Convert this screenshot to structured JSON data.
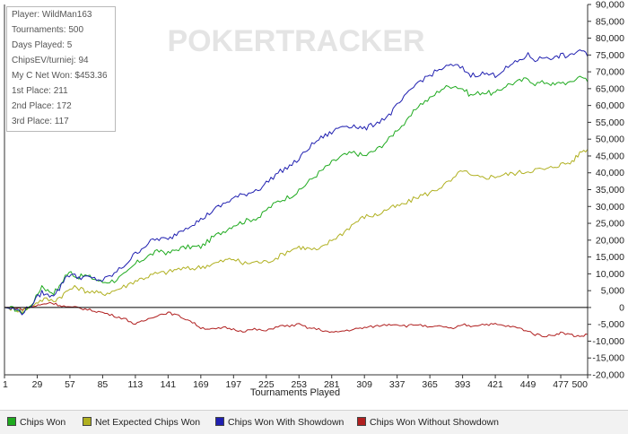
{
  "watermark": "POKERTRACKER",
  "stats": [
    "Player: WildMan163",
    "Tournaments: 500",
    "Days Played: 5",
    "ChipsEV/turniej: 94",
    "My C Net Won: $453.36",
    "1st Place: 211",
    "2nd Place: 172",
    "3rd Place: 117"
  ],
  "chart_data": {
    "type": "line",
    "xlabel": "Tournaments Played",
    "ylabel": "",
    "xlim": [
      1,
      500
    ],
    "ylim": [
      -20000,
      90000
    ],
    "x_ticks": [
      1,
      29,
      57,
      85,
      113,
      141,
      169,
      197,
      225,
      253,
      281,
      309,
      337,
      365,
      393,
      421,
      449,
      477,
      500
    ],
    "y_ticks": [
      -20000,
      -15000,
      -10000,
      -5000,
      0,
      5000,
      10000,
      15000,
      20000,
      25000,
      30000,
      35000,
      40000,
      45000,
      50000,
      55000,
      60000,
      65000,
      70000,
      75000,
      80000,
      85000,
      90000
    ],
    "y_tick_labels": [
      "-20,000",
      "-15,000",
      "-10,000",
      "-5,000",
      "0",
      "5,000",
      "10,000",
      "15,000",
      "20,000",
      "25,000",
      "30,000",
      "35,000",
      "40,000",
      "45,000",
      "50,000",
      "55,000",
      "60,000",
      "65,000",
      "70,000",
      "75,000",
      "80,000",
      "85,000",
      "90,000"
    ],
    "grid": false,
    "legend_position": "bottom",
    "series": [
      {
        "name": "Chips Won",
        "color": "#1faa1f",
        "x": [
          1,
          10,
          16,
          22,
          28,
          33,
          38,
          43,
          48,
          53,
          58,
          63,
          70,
          78,
          85,
          95,
          105,
          113,
          120,
          128,
          135,
          141,
          150,
          160,
          169,
          180,
          190,
          197,
          210,
          220,
          225,
          235,
          245,
          253,
          260,
          270,
          281,
          290,
          300,
          309,
          320,
          330,
          337,
          345,
          355,
          365,
          375,
          385,
          393,
          400,
          410,
          421,
          430,
          440,
          449,
          455,
          465,
          472,
          477,
          485,
          490,
          495,
          500
        ],
        "y": [
          0,
          -500,
          -1500,
          0,
          3000,
          6500,
          5000,
          4500,
          6000,
          9500,
          10500,
          9000,
          9500,
          8500,
          7500,
          8000,
          10000,
          13000,
          14500,
          16000,
          17000,
          16000,
          17500,
          18000,
          18000,
          21000,
          23000,
          24500,
          26000,
          27000,
          29000,
          31500,
          33000,
          34500,
          37000,
          40000,
          43000,
          45000,
          46000,
          45000,
          47000,
          50000,
          53000,
          55000,
          60000,
          62000,
          65000,
          66000,
          65000,
          63000,
          64000,
          63500,
          66000,
          67000,
          68000,
          66500,
          67000,
          66000,
          67000,
          66500,
          68000,
          69000,
          67000
        ]
      },
      {
        "name": "Net Expected Chips Won",
        "color": "#b0b020",
        "x": [
          1,
          10,
          16,
          22,
          28,
          35,
          43,
          50,
          57,
          63,
          70,
          78,
          85,
          95,
          105,
          113,
          122,
          130,
          141,
          150,
          160,
          169,
          180,
          190,
          197,
          205,
          215,
          225,
          235,
          245,
          253,
          260,
          270,
          281,
          290,
          300,
          309,
          320,
          330,
          337,
          345,
          355,
          365,
          375,
          385,
          393,
          400,
          410,
          421,
          430,
          440,
          449,
          455,
          465,
          472,
          477,
          485,
          490,
          495,
          500
        ],
        "y": [
          0,
          -500,
          -1000,
          0,
          1500,
          2500,
          2000,
          3500,
          5500,
          6000,
          5000,
          4500,
          4000,
          5000,
          6500,
          8000,
          9000,
          10000,
          10500,
          11500,
          11500,
          12000,
          13000,
          14000,
          14500,
          13000,
          13500,
          13500,
          15000,
          17000,
          18000,
          17500,
          17000,
          20000,
          22000,
          25000,
          27000,
          27500,
          29500,
          30000,
          31000,
          33000,
          34000,
          36000,
          38000,
          41000,
          39000,
          38500,
          39000,
          39500,
          40000,
          40500,
          41000,
          41000,
          42000,
          42500,
          43000,
          44500,
          46500,
          47000
        ]
      },
      {
        "name": "Chips Won With Showdown",
        "color": "#1f1fb0",
        "x": [
          1,
          10,
          16,
          22,
          28,
          33,
          38,
          43,
          48,
          53,
          58,
          63,
          70,
          78,
          85,
          95,
          105,
          113,
          120,
          128,
          135,
          141,
          150,
          160,
          169,
          180,
          190,
          197,
          210,
          220,
          225,
          235,
          245,
          253,
          260,
          270,
          281,
          290,
          300,
          309,
          320,
          330,
          337,
          345,
          355,
          365,
          375,
          385,
          393,
          400,
          410,
          421,
          430,
          440,
          449,
          455,
          465,
          472,
          477,
          485,
          490,
          495,
          500
        ],
        "y": [
          0,
          -500,
          -1500,
          0,
          2500,
          4500,
          3500,
          4000,
          5500,
          9000,
          10000,
          9000,
          9000,
          8500,
          8000,
          10000,
          13000,
          16000,
          18000,
          20000,
          20500,
          20000,
          22500,
          24500,
          26000,
          29000,
          31000,
          32500,
          34000,
          35500,
          37000,
          40000,
          42000,
          44000,
          47000,
          50000,
          52000,
          54000,
          54000,
          53000,
          55000,
          57000,
          60000,
          63000,
          67000,
          69000,
          71000,
          72000,
          71000,
          69000,
          69500,
          69000,
          71000,
          73000,
          75000,
          73500,
          74500,
          74000,
          75000,
          74500,
          76000,
          76500,
          74500
        ]
      },
      {
        "name": "Chips Won Without Showdown",
        "color": "#b01f1f",
        "x": [
          1,
          10,
          16,
          22,
          28,
          35,
          40,
          45,
          50,
          57,
          63,
          70,
          78,
          85,
          95,
          105,
          113,
          120,
          130,
          141,
          150,
          160,
          169,
          180,
          190,
          197,
          205,
          215,
          225,
          235,
          245,
          253,
          260,
          270,
          281,
          290,
          300,
          309,
          320,
          330,
          337,
          345,
          355,
          365,
          375,
          385,
          393,
          400,
          410,
          421,
          430,
          440,
          449,
          455,
          465,
          472,
          477,
          485,
          490,
          495,
          500
        ],
        "y": [
          0,
          0,
          -500,
          0,
          500,
          1000,
          1500,
          1000,
          500,
          0,
          0,
          -500,
          -1000,
          -1500,
          -2500,
          -3500,
          -5000,
          -4000,
          -2500,
          -1500,
          -2500,
          -4000,
          -6000,
          -6500,
          -6000,
          -6500,
          -7000,
          -6500,
          -7000,
          -5500,
          -5500,
          -5000,
          -6000,
          -6500,
          -7500,
          -7000,
          -6500,
          -6000,
          -5500,
          -5000,
          -5000,
          -5500,
          -5000,
          -6000,
          -5500,
          -6500,
          -5000,
          -5500,
          -5000,
          -5000,
          -5500,
          -6000,
          -7000,
          -8000,
          -8500,
          -8000,
          -7500,
          -8000,
          -8500,
          -8500,
          -8000
        ]
      }
    ]
  }
}
